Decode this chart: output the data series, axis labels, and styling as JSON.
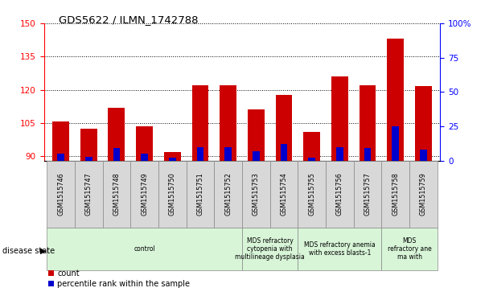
{
  "title": "GDS5622 / ILMN_1742788",
  "samples": [
    "GSM1515746",
    "GSM1515747",
    "GSM1515748",
    "GSM1515749",
    "GSM1515750",
    "GSM1515751",
    "GSM1515752",
    "GSM1515753",
    "GSM1515754",
    "GSM1515755",
    "GSM1515756",
    "GSM1515757",
    "GSM1515758",
    "GSM1515759"
  ],
  "counts": [
    105.5,
    102.5,
    112,
    103.5,
    92,
    122,
    122,
    111,
    117.5,
    101,
    126,
    122,
    143,
    121.5
  ],
  "percentile_ranks": [
    5,
    3,
    9,
    5,
    2,
    10,
    10,
    7,
    12,
    2,
    10,
    9,
    25,
    8
  ],
  "ylim_left": [
    88,
    150
  ],
  "ylim_right": [
    0,
    100
  ],
  "yticks_left": [
    90,
    105,
    120,
    135,
    150
  ],
  "yticks_right": [
    0,
    25,
    50,
    75,
    100
  ],
  "bar_color": "#cc0000",
  "percentile_color": "#0000cc",
  "bar_width": 0.6,
  "percentile_bar_width": 0.25,
  "disease_groups": [
    {
      "label": "control",
      "start": 0,
      "end": 7,
      "color": "#d8f5d8"
    },
    {
      "label": "MDS refractory\ncytopenia with\nmultilineage dysplasia",
      "start": 7,
      "end": 9,
      "color": "#d8f5d8"
    },
    {
      "label": "MDS refractory anemia\nwith excess blasts-1",
      "start": 9,
      "end": 12,
      "color": "#d8f5d8"
    },
    {
      "label": "MDS\nrefractory ane\nma with",
      "start": 12,
      "end": 14,
      "color": "#d8f5d8"
    }
  ],
  "legend_count_label": "count",
  "legend_percentile_label": "percentile rank within the sample",
  "disease_state_label": "disease state"
}
